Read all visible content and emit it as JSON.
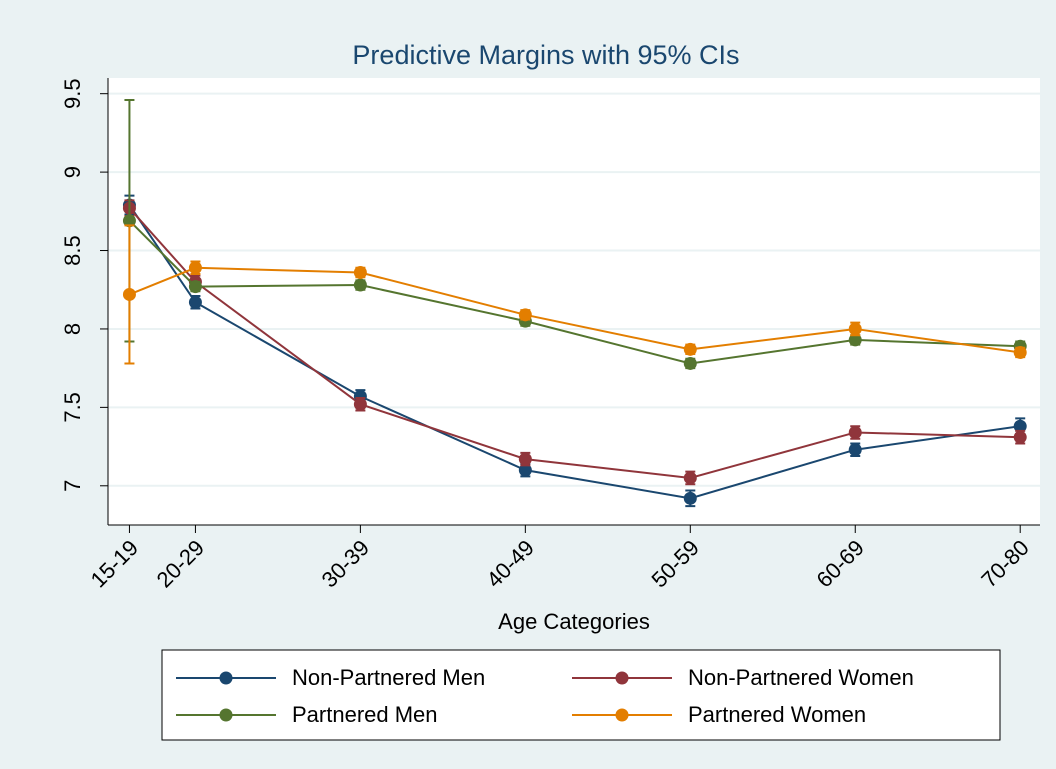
{
  "chart_data": {
    "type": "line",
    "title": "Predictive Margins with 95% CIs",
    "x_label": "Age Categories",
    "x": [
      16,
      20,
      30,
      40,
      50,
      60,
      70
    ],
    "xlim": [
      14.7,
      71.2
    ],
    "xticks": [
      {
        "value": 16,
        "label": "15-19"
      },
      {
        "value": 20,
        "label": "20-29"
      },
      {
        "value": 30,
        "label": "30-39"
      },
      {
        "value": 40,
        "label": "40-49"
      },
      {
        "value": 50,
        "label": "50-59"
      },
      {
        "value": 60,
        "label": "60-69"
      },
      {
        "value": 70,
        "label": "70-80"
      }
    ],
    "ylim": [
      6.75,
      9.6
    ],
    "yticks": [
      7,
      7.5,
      8,
      8.5,
      9,
      9.5
    ],
    "grid": true,
    "legend": "bottom",
    "series": [
      {
        "name": "Non-Partnered Men",
        "color": "#1a476f",
        "values": [
          8.79,
          8.17,
          7.57,
          7.1,
          6.92,
          7.23,
          7.38
        ],
        "errors": [
          0.06,
          0.04,
          0.04,
          0.04,
          0.05,
          0.04,
          0.05
        ]
      },
      {
        "name": "Non-Partnered Women",
        "color": "#90353b",
        "values": [
          8.77,
          8.3,
          7.52,
          7.17,
          7.05,
          7.34,
          7.31
        ],
        "errors": [
          0.05,
          0.04,
          0.04,
          0.04,
          0.04,
          0.04,
          0.04
        ]
      },
      {
        "name": "Partnered Men",
        "color": "#55752f",
        "values": [
          8.69,
          8.27,
          8.28,
          8.05,
          7.78,
          7.93,
          7.89
        ],
        "errors": [
          0.77,
          0.03,
          0.03,
          0.03,
          0.03,
          0.03,
          0.03
        ]
      },
      {
        "name": "Partnered Women",
        "color": "#e37e00",
        "values": [
          8.22,
          8.39,
          8.36,
          8.09,
          7.87,
          8.0,
          7.85
        ],
        "errors": [
          0.44,
          0.04,
          0.03,
          0.03,
          0.03,
          0.04,
          0.03
        ]
      }
    ]
  }
}
